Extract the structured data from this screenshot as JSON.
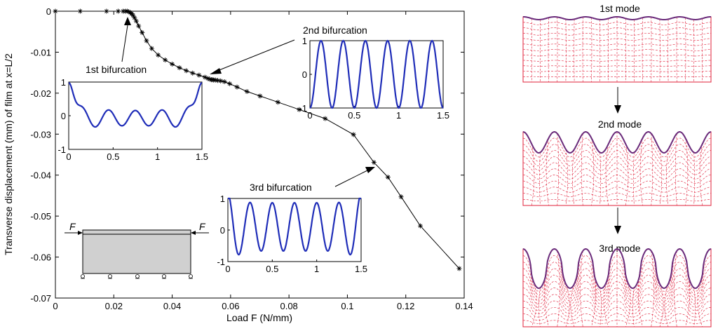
{
  "chart_data": [
    {
      "type": "line",
      "xlabel": "Load F (N/mm)",
      "ylabel": "Transverse displacement (mm) of film at x=L/2",
      "xlim": [
        0,
        0.14
      ],
      "ylim": [
        -0.07,
        0
      ],
      "xticks": [
        "0",
        "0.02",
        "0.04",
        "0.06",
        "0.08",
        "0.1",
        "0.12",
        "0.14"
      ],
      "yticks": [
        "0",
        "-0.01",
        "-0.02",
        "-0.03",
        "-0.04",
        "-0.05",
        "-0.06",
        "-0.07"
      ],
      "series": [
        {
          "x": [
            0,
            0.0085,
            0.0175,
            0.0215,
            0.0232,
            0.024,
            0.0246,
            0.0251,
            0.0256,
            0.0261,
            0.0266,
            0.0271,
            0.0277,
            0.0285,
            0.0297,
            0.0312,
            0.033,
            0.0352,
            0.0376,
            0.04,
            0.0425,
            0.0448,
            0.047,
            0.0492,
            0.0512,
            0.0522,
            0.0529,
            0.0534,
            0.0538,
            0.0542,
            0.0548,
            0.0556,
            0.0566,
            0.0579,
            0.0597,
            0.0622,
            0.0656,
            0.0701,
            0.0762,
            0.0835,
            0.0924,
            0.1021,
            0.1091,
            0.1139,
            0.1184,
            0.125,
            0.1383
          ],
          "y": [
            0,
            0,
            0,
            0,
            0,
            0,
            0,
            -0.0001,
            -0.0003,
            -0.0006,
            -0.001,
            -0.0016,
            -0.0024,
            -0.0036,
            -0.0052,
            -0.0072,
            -0.0091,
            -0.0107,
            -0.0119,
            -0.0129,
            -0.0138,
            -0.0145,
            -0.0151,
            -0.0156,
            -0.0161,
            -0.0164,
            -0.0166,
            -0.0167,
            -0.0167,
            -0.0168,
            -0.0168,
            -0.0169,
            -0.017,
            -0.0172,
            -0.0177,
            -0.0185,
            -0.0196,
            -0.0207,
            -0.0222,
            -0.024,
            -0.0262,
            -0.0301,
            -0.0369,
            -0.0405,
            -0.0453,
            -0.0524,
            -0.0628
          ]
        }
      ]
    },
    {
      "type": "line",
      "xlim": [
        0,
        1.5
      ],
      "ylim": [
        -1,
        1
      ],
      "xticks": [
        "0",
        "0.5",
        "1",
        "1.5"
      ],
      "yticks": [
        "1",
        "0",
        "-1"
      ],
      "series": [
        {
          "color": "#1f2db8",
          "mode": "1st"
        }
      ]
    },
    {
      "type": "line",
      "xlim": [
        0,
        1.5
      ],
      "ylim": [
        -1,
        1
      ],
      "xticks": [
        "0",
        "0.5",
        "1",
        "1.5"
      ],
      "yticks": [
        "1",
        "0",
        "-1"
      ],
      "series": [
        {
          "color": "#1f2db8",
          "mode": "2nd"
        }
      ]
    },
    {
      "type": "line",
      "xlim": [
        0,
        1.5
      ],
      "ylim": [
        -1,
        1
      ],
      "xticks": [
        "0",
        "0.5",
        "1",
        "1.5"
      ],
      "yticks": [
        "1",
        "0",
        "-1"
      ],
      "series": [
        {
          "color": "#1f2db8",
          "mode": "3rd"
        }
      ]
    }
  ],
  "annotations": {
    "bif1": "1st bifurcation",
    "bif2": "2nd bifurcation",
    "bif3": "3rd bifurcation"
  },
  "schematic": {
    "force_left": "F",
    "force_right": "F"
  },
  "modes": [
    {
      "title": "1st mode"
    },
    {
      "title": "2nd mode"
    },
    {
      "title": "3rd mode"
    }
  ],
  "colors": {
    "curve": "#000000",
    "mode_line": "#1f2db8",
    "mesh": "#e0203a",
    "film": "#6a2a7a",
    "substrate_fill": "#d0d0d0"
  }
}
